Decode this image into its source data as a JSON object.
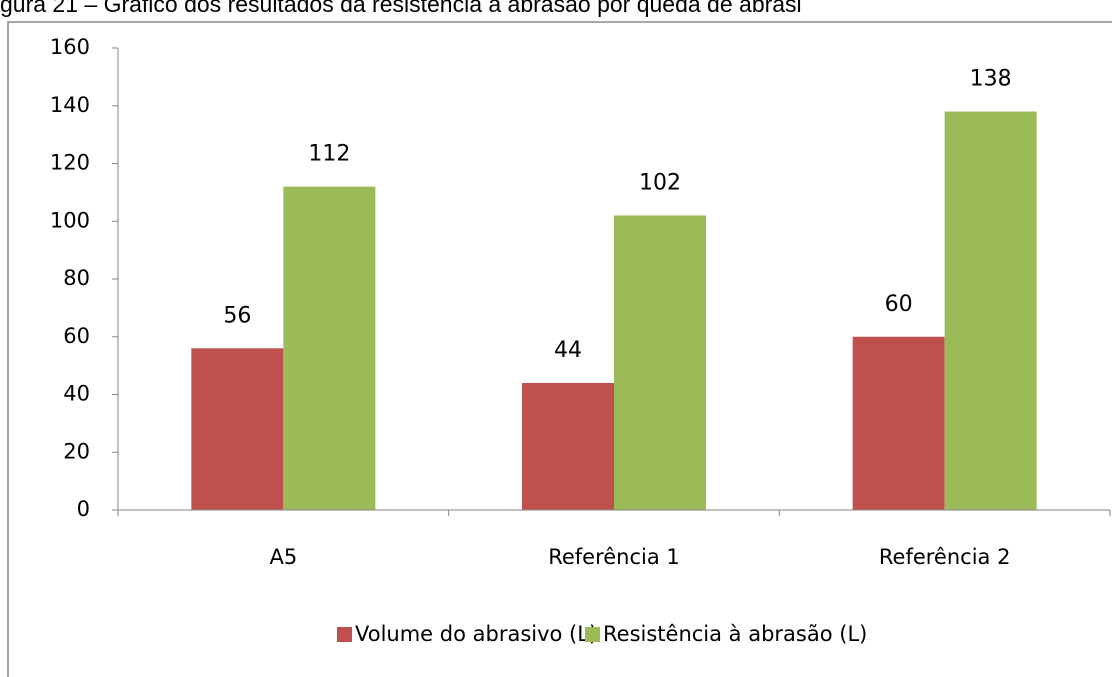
{
  "chart_data": {
    "type": "bar",
    "title": "gura 21 – Gráfico dos resultados da resistência à abrasão por queda de abrasi",
    "categories": [
      "A5",
      "Referência 1",
      "Referência 2"
    ],
    "series": [
      {
        "name": "Volume do abrasivo (L)",
        "color": "#c0504d",
        "values": [
          56,
          44,
          60
        ]
      },
      {
        "name": "Resistência à abrasão (L)",
        "color": "#9bbb59",
        "values": [
          112,
          102,
          138
        ]
      }
    ],
    "ylim": [
      0,
      160
    ],
    "yticks": [
      0,
      20,
      40,
      60,
      80,
      100,
      120,
      140,
      160
    ],
    "grid": false,
    "legend": "bottom"
  }
}
